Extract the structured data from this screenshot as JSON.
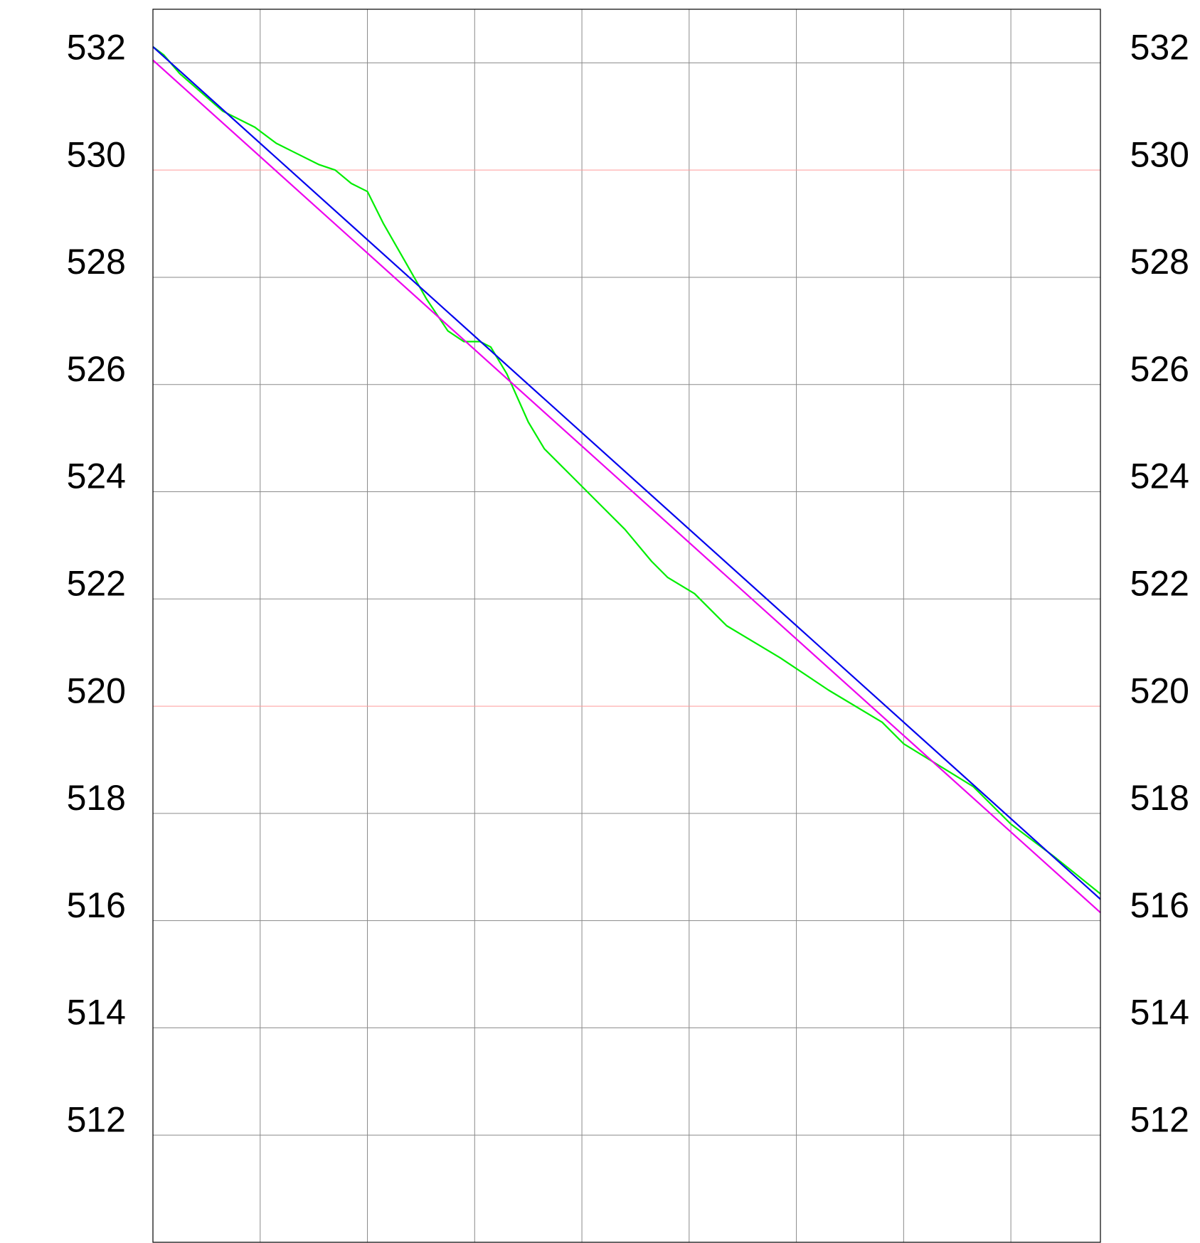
{
  "chart_data": {
    "type": "line",
    "title": "",
    "xlabel": "",
    "ylabel": "",
    "ylim": [
      510,
      533
    ],
    "xlim": [
      0,
      17.67
    ],
    "y_ticks": [
      512,
      514,
      516,
      518,
      520,
      522,
      524,
      526,
      528,
      530,
      532
    ],
    "y_tick_labels": [
      "512",
      "514",
      "516",
      "518",
      "520",
      "522",
      "524",
      "526",
      "528",
      "530",
      "532"
    ],
    "x_grid": [
      2,
      4,
      6,
      8,
      10,
      12,
      14,
      16
    ],
    "highlighted_y_gridlines": [
      520,
      530
    ],
    "grid": true,
    "legend": "none",
    "series": [
      {
        "color": "#00ee00",
        "x": [
          0,
          0.2,
          0.5,
          1.3,
          1.9,
          2.3,
          2.6,
          3.1,
          3.4,
          3.7,
          4.0,
          4.3,
          4.7,
          5.1,
          5.5,
          5.8,
          6.1,
          6.3,
          6.6,
          7.0,
          7.3,
          7.6,
          7.8,
          8.3,
          8.8,
          9.3,
          9.6,
          10.1,
          10.7,
          11.7,
          12.6,
          13.6,
          14.0,
          15.3,
          16.0,
          16.8,
          17.67
        ],
        "y": [
          532.3,
          532.15,
          531.8,
          531.1,
          530.8,
          530.5,
          530.35,
          530.1,
          530.0,
          529.75,
          529.6,
          529.0,
          528.3,
          527.6,
          527.0,
          526.8,
          526.8,
          526.7,
          526.2,
          525.3,
          524.8,
          524.5,
          524.3,
          523.8,
          523.3,
          522.7,
          522.4,
          522.1,
          521.5,
          520.9,
          520.3,
          519.7,
          519.3,
          518.5,
          517.8,
          517.2,
          516.5
        ]
      },
      {
        "color": "#0000ee",
        "x": [
          0,
          17.67
        ],
        "y": [
          532.3,
          516.4
        ]
      },
      {
        "color": "#ee00ee",
        "x": [
          0,
          17.67
        ],
        "y": [
          532.05,
          516.15
        ]
      }
    ]
  },
  "colors": {
    "grid": "#8a8a8a",
    "grid_highlight": "#ff9a9a",
    "frame": "#000000",
    "text": "#000000"
  }
}
